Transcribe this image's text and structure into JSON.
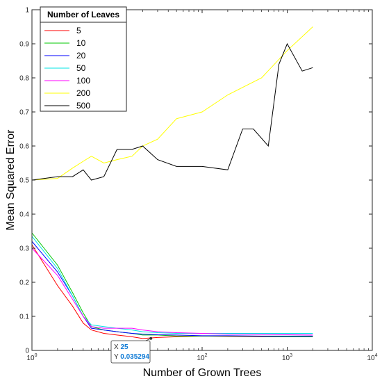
{
  "chart_data": {
    "type": "line",
    "xscale": "log",
    "xlim": [
      1,
      10000
    ],
    "ylim": [
      0,
      1
    ],
    "xlabel": "Number of Grown Trees",
    "ylabel": "Mean Squared Error",
    "x_ticks": [
      {
        "value": 1,
        "base": "10",
        "exp": "0"
      },
      {
        "value": 10,
        "base": "10",
        "exp": "1"
      },
      {
        "value": 100,
        "base": "10",
        "exp": "2"
      },
      {
        "value": 1000,
        "base": "10",
        "exp": "3"
      },
      {
        "value": 10000,
        "base": "10",
        "exp": "4"
      }
    ],
    "y_ticks": [
      {
        "value": 0,
        "label": "0"
      },
      {
        "value": 0.1,
        "label": "0.1"
      },
      {
        "value": 0.2,
        "label": "0.2"
      },
      {
        "value": 0.3,
        "label": "0.3"
      },
      {
        "value": 0.4,
        "label": "0.4"
      },
      {
        "value": 0.5,
        "label": "0.5"
      },
      {
        "value": 0.6,
        "label": "0.6"
      },
      {
        "value": 0.7,
        "label": "0.7"
      },
      {
        "value": 0.8,
        "label": "0.8"
      },
      {
        "value": 0.9,
        "label": "0.9"
      },
      {
        "value": 1,
        "label": "1"
      }
    ],
    "grid": false,
    "legend": {
      "title": "Number of Leaves",
      "placement": "top-left"
    },
    "series": [
      {
        "name": "5",
        "color": "#ff0000",
        "x": [
          1,
          2,
          3,
          4,
          5,
          7,
          10,
          15,
          20,
          30,
          50,
          100,
          200,
          500,
          1000,
          2000
        ],
        "y": [
          0.31,
          0.19,
          0.13,
          0.08,
          0.06,
          0.05,
          0.045,
          0.04,
          0.035,
          0.038,
          0.04,
          0.042,
          0.041,
          0.04,
          0.04,
          0.04
        ]
      },
      {
        "name": "10",
        "color": "#00c800",
        "x": [
          1,
          2,
          3,
          4,
          5,
          7,
          10,
          15,
          20,
          30,
          50,
          100,
          200,
          500,
          1000,
          2000
        ],
        "y": [
          0.345,
          0.25,
          0.17,
          0.11,
          0.07,
          0.06,
          0.055,
          0.05,
          0.045,
          0.045,
          0.042,
          0.042,
          0.042,
          0.041,
          0.04,
          0.04
        ]
      },
      {
        "name": "20",
        "color": "#0000ff",
        "x": [
          1,
          2,
          3,
          4,
          5,
          7,
          10,
          15,
          20,
          30,
          50,
          100,
          200,
          500,
          1000,
          2000
        ],
        "y": [
          0.32,
          0.23,
          0.16,
          0.1,
          0.065,
          0.06,
          0.055,
          0.05,
          0.048,
          0.046,
          0.045,
          0.043,
          0.043,
          0.042,
          0.042,
          0.042
        ]
      },
      {
        "name": "50",
        "color": "#00e5e5",
        "x": [
          1,
          2,
          3,
          4,
          5,
          7,
          10,
          15,
          20,
          30,
          50,
          100,
          200,
          500,
          1000,
          2000
        ],
        "y": [
          0.335,
          0.24,
          0.16,
          0.1,
          0.075,
          0.07,
          0.065,
          0.06,
          0.055,
          0.052,
          0.05,
          0.05,
          0.05,
          0.05,
          0.05,
          0.05
        ]
      },
      {
        "name": "100",
        "color": "#ff00ff",
        "x": [
          1,
          2,
          3,
          4,
          5,
          7,
          10,
          15,
          20,
          30,
          50,
          100,
          200,
          500,
          1000,
          2000
        ],
        "y": [
          0.3,
          0.22,
          0.15,
          0.1,
          0.07,
          0.065,
          0.065,
          0.065,
          0.06,
          0.055,
          0.052,
          0.05,
          0.048,
          0.047,
          0.046,
          0.045
        ]
      },
      {
        "name": "200",
        "color": "#ffff00",
        "x": [
          1,
          2,
          3,
          4,
          5,
          7,
          10,
          15,
          20,
          30,
          50,
          100,
          200,
          500,
          1000,
          2000
        ],
        "y": [
          0.5,
          0.505,
          0.535,
          0.555,
          0.57,
          0.55,
          0.56,
          0.57,
          0.6,
          0.62,
          0.68,
          0.7,
          0.75,
          0.8,
          0.88,
          0.95
        ]
      },
      {
        "name": "500",
        "color": "#000000",
        "x": [
          1,
          2,
          3,
          4,
          5,
          7,
          10,
          15,
          20,
          30,
          50,
          100,
          200,
          300,
          400,
          600,
          800,
          1000,
          1500,
          2000
        ],
        "y": [
          0.5,
          0.51,
          0.51,
          0.53,
          0.5,
          0.51,
          0.59,
          0.59,
          0.6,
          0.56,
          0.54,
          0.54,
          0.53,
          0.65,
          0.65,
          0.6,
          0.84,
          0.9,
          0.82,
          0.83
        ]
      }
    ],
    "annotations": [
      {
        "type": "datatip",
        "x_label": "X",
        "x_value": "25",
        "y_label": "Y",
        "y_value": "0.035294",
        "x": 25,
        "y": 0.035294
      }
    ]
  }
}
